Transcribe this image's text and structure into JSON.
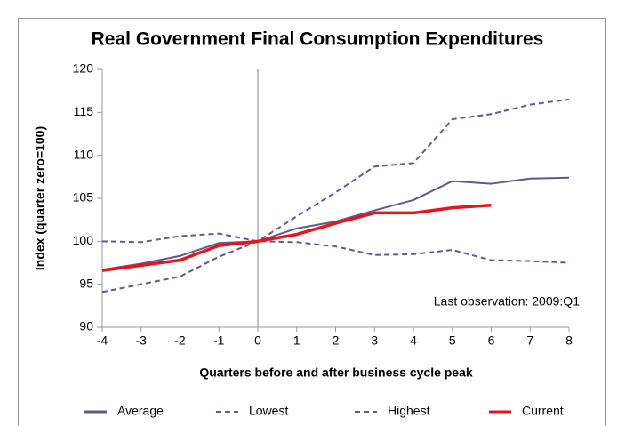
{
  "chart_data": {
    "type": "line",
    "title": "Real Government Final Consumption Expenditures",
    "x_label": "Quarters before and after business cycle peak",
    "y_label": "Index (quarter zero=100)",
    "annotation": "Last observation: 2009:Q1",
    "x": [
      -4,
      -3,
      -2,
      -1,
      0,
      1,
      2,
      3,
      4,
      5,
      6,
      7,
      8
    ],
    "xlim": [
      -4,
      8
    ],
    "xticks": [
      -4,
      -3,
      -2,
      -1,
      0,
      1,
      2,
      3,
      4,
      5,
      6,
      7,
      8
    ],
    "ylim": [
      90,
      120
    ],
    "yticks": [
      90,
      95,
      100,
      105,
      110,
      115,
      120
    ],
    "series": [
      {
        "name": "Average",
        "color": "#5b5b8f",
        "dashed": false,
        "values": [
          96.7,
          97.4,
          98.3,
          99.8,
          100,
          101.5,
          102.3,
          103.6,
          104.8,
          107.0,
          106.7,
          107.3,
          107.4
        ]
      },
      {
        "name": "Lowest",
        "color": "#5b5b9c",
        "dashed": true,
        "values": [
          100.0,
          99.9,
          100.6,
          100.9,
          100,
          99.9,
          99.4,
          98.4,
          98.5,
          99.0,
          97.8,
          97.7,
          97.5
        ]
      },
      {
        "name": "Highest",
        "color": "#5b5b9c",
        "dashed": true,
        "values": [
          94.1,
          95.0,
          95.9,
          98.2,
          100,
          102.9,
          105.7,
          108.7,
          109.1,
          114.2,
          114.8,
          115.9,
          116.5
        ]
      },
      {
        "name": "Current",
        "color": "#e8141c",
        "dashed": false,
        "values": [
          96.6,
          97.2,
          97.8,
          99.5,
          100,
          100.8,
          102.1,
          103.3,
          103.3,
          103.9,
          104.2,
          null,
          null
        ]
      }
    ]
  }
}
